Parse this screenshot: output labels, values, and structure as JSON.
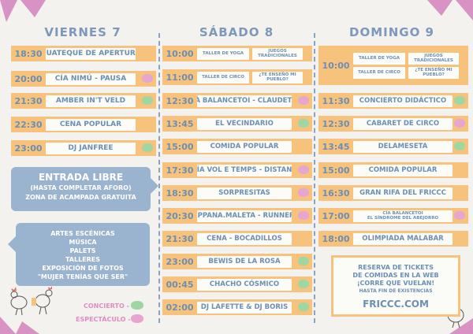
{
  "days": [
    "VIERNES 7",
    "SÁBADO 8",
    "DOMINGO 9"
  ],
  "viernes": [
    {
      "time": "18:30",
      "title": "GUATEQUE DE APERTURA",
      "dot": ""
    },
    {
      "time": "20:00",
      "title": "CÍA NIMÚ - PAUSA",
      "dot": "pink"
    },
    {
      "time": "21:30",
      "title": "AMBER IN'T VELD",
      "dot": "green"
    },
    {
      "time": "22:30",
      "title": "CENA POPULAR",
      "dot": ""
    },
    {
      "time": "23:00",
      "title": "DJ JANFREE",
      "dot": "green"
    }
  ],
  "sabado": [
    {
      "time": "10:00",
      "a": "TALLER DE YOGA",
      "b": "JUEGOS TRADICIONALES"
    },
    {
      "time": "11:00",
      "a": "TALLER DE CIRCO",
      "b": "¿TE ENSEÑO MI PUEBLO?"
    },
    {
      "time": "12:30",
      "title": "CIÀ BALANCETOI - CLAUDETTE",
      "dot": "pink"
    },
    {
      "time": "13:45",
      "title": "EL VECINDARIO",
      "dot": "green"
    },
    {
      "time": "15:00",
      "title": "COMIDA POPULAR",
      "dot": ""
    },
    {
      "time": "17:30",
      "title": "CÍA VOL E TEMPS - DISTANS",
      "dot": "pink"
    },
    {
      "time": "18:30",
      "title": "SORPRESITAS",
      "dot": "pink"
    },
    {
      "time": "20:30",
      "title": "HIPPANA.MALETA - RUNNERS",
      "dot": "pink"
    },
    {
      "time": "21:30",
      "title": "CENA - BOCADILLOS",
      "dot": ""
    },
    {
      "time": "23:00",
      "title": "BEWIS DE LA ROSA",
      "dot": "green"
    },
    {
      "time": "00:45",
      "title": "CHACHO CÓSMICO",
      "dot": "green"
    },
    {
      "time": "02:00",
      "title": "DJ LAFETTE & DJ BORIS",
      "dot": "green"
    }
  ],
  "domingo": [
    {
      "time": "10:00",
      "a": "TALLER DE YOGA",
      "b": "JUEGOS TRADICIONALES",
      "c": "TALLER DE CIRCO",
      "d": "¿TE ENSEÑO MI PUEBLO?"
    },
    {
      "time": "11:30",
      "title": "CONCIERTO DIDÁCTICO",
      "dot": "green"
    },
    {
      "time": "12:30",
      "title": "CABARET DE CIRCO",
      "dot": "pink"
    },
    {
      "time": "13:45",
      "title": "DELAMESETA",
      "dot": "green"
    },
    {
      "time": "15:00",
      "title": "COMIDA POPULAR",
      "dot": ""
    },
    {
      "time": "16:30",
      "title": "GRAN RIFA DEL FRICCC",
      "dot": ""
    },
    {
      "time": "17:00",
      "title": "CÍA BALANCETOI\nEL SÍNDROME DEL ABEJORRO",
      "dot": "pink"
    },
    {
      "time": "18:00",
      "title": "OLIMPIADA MALABAR",
      "dot": ""
    }
  ],
  "entrada": {
    "title": "ENTRADA LIBRE",
    "line1": "(HASTA COMPLETAR AFORO)",
    "line2": "ZONA DE ACAMPADA GRATUITA"
  },
  "info": [
    "ARTES ESCÉNICAS",
    "MÚSICA",
    "PALETS",
    "TALLERES",
    "EXPOSICIÓN DE FOTOS",
    "\"MUJER TENÍAS QUE SER\""
  ],
  "legend": {
    "concierto": "CONCIERTO -",
    "espectaculo": "ESPECTÁCULO -"
  },
  "promo": {
    "line1": "RESERVA DE TICKETS",
    "line2": "DE COMIDAS EN LA WEB",
    "line3": "¡CORRE QUE VUELAN!",
    "line4": "HASTA FIN DE EXISTENCIAS",
    "url": "FRICCC.COM"
  },
  "colors": {
    "orange": "#f7c27c",
    "blue": "#9ab3cf",
    "green": "#9fd7a3",
    "pink": "#e6a6d0",
    "text": "#6c8fb4"
  }
}
